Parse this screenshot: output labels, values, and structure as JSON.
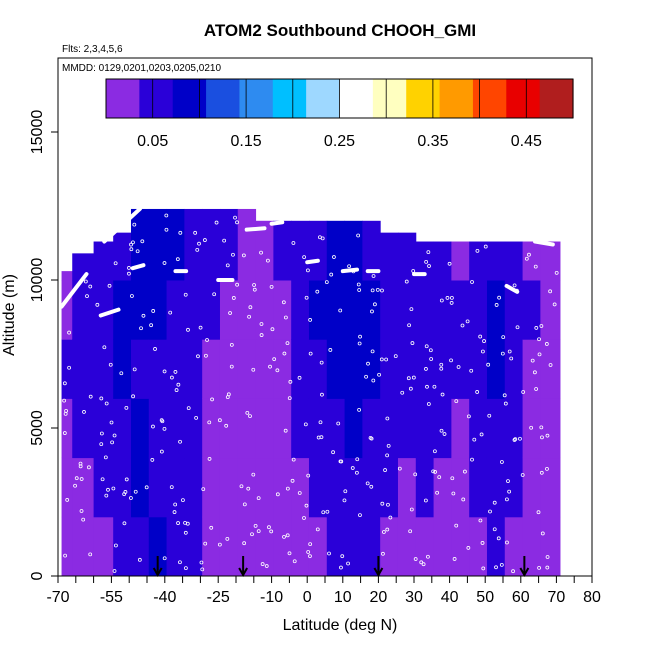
{
  "chart_data": {
    "type": "heatmap",
    "title": "ATOM2 Southbound CHOOH_GMI",
    "flights_label": "Flts: 2,3,4,5,6",
    "dates_label": "MMDD: 0129,0201,0203,0205,0210",
    "xlabel": "Latitude (deg N)",
    "ylabel": "Altitude (m)",
    "xlim": [
      -70,
      80
    ],
    "ylim": [
      0,
      17500
    ],
    "x_ticks": [
      -70,
      -55,
      -40,
      -25,
      -10,
      0,
      10,
      20,
      30,
      40,
      50,
      60,
      70,
      80
    ],
    "x_minor_ticks": [
      -65,
      -60,
      -50,
      -45,
      -35,
      -30,
      -20,
      -15,
      -5,
      5,
      15,
      25,
      35,
      45,
      55,
      65,
      75
    ],
    "y_ticks": [
      0,
      5000,
      10000,
      15000
    ],
    "colorbar": {
      "range": [
        0,
        0.5
      ],
      "ticks": [
        0.05,
        0.15,
        0.25,
        0.35,
        0.45
      ],
      "tick_labels": [
        "0.05",
        "0.15",
        "0.25",
        "0.35",
        "0.45"
      ],
      "colors": [
        "#8B2BE2",
        "#2A00D8",
        "#0000C8",
        "#1A4FE0",
        "#2E8BF0",
        "#00BFFF",
        "#9ED8FF",
        "#FFFFFF",
        "#FFFFC0",
        "#FFD200",
        "#FF9A00",
        "#FF4500",
        "#E80000",
        "#B01E1E"
      ]
    },
    "value_columns": [
      {
        "lat": -69,
        "zmax": 10300,
        "lows": [
          0.02,
          0.02,
          0.02,
          0.04,
          0.03,
          0.02
        ]
      },
      {
        "lat": -63,
        "zmax": 10900,
        "lows": [
          0.03,
          0.03,
          0.04,
          0.05,
          0.05,
          0.04
        ]
      },
      {
        "lat": -57,
        "zmax": 11300,
        "lows": [
          0.03,
          0.04,
          0.06,
          0.07,
          0.06,
          0.05
        ]
      },
      {
        "lat": -52,
        "zmax": 11600,
        "lows": [
          0.04,
          0.06,
          0.07,
          0.08,
          0.08,
          0.06
        ]
      },
      {
        "lat": -47,
        "zmax": 12400,
        "lows": [
          0.07,
          0.08,
          0.09,
          0.07,
          0.08,
          0.09
        ]
      },
      {
        "lat": -42,
        "zmax": 12400,
        "lows": [
          0.08,
          0.07,
          0.05,
          0.06,
          0.08,
          0.09
        ]
      },
      {
        "lat": -37,
        "zmax": 12400,
        "lows": [
          0.06,
          0.05,
          0.05,
          0.06,
          0.07,
          0.08
        ]
      },
      {
        "lat": -32,
        "zmax": 12400,
        "lows": [
          0.04,
          0.04,
          0.04,
          0.05,
          0.06,
          0.07
        ]
      },
      {
        "lat": -27,
        "zmax": 12400,
        "lows": [
          0.03,
          0.03,
          0.03,
          0.03,
          0.04,
          0.05
        ]
      },
      {
        "lat": -22,
        "zmax": 12400,
        "lows": [
          0.02,
          0.02,
          0.02,
          0.02,
          0.03,
          0.04
        ]
      },
      {
        "lat": -17,
        "zmax": 12400,
        "lows": [
          0.02,
          0.02,
          0.02,
          0.02,
          0.03,
          0.03
        ]
      },
      {
        "lat": -12,
        "zmax": 12000,
        "lows": [
          0.02,
          0.02,
          0.02,
          0.02,
          0.02,
          0.03
        ]
      },
      {
        "lat": -7,
        "zmax": 12000,
        "lows": [
          0.02,
          0.02,
          0.03,
          0.03,
          0.03,
          0.04
        ]
      },
      {
        "lat": -2,
        "zmax": 12000,
        "lows": [
          0.02,
          0.03,
          0.04,
          0.04,
          0.05,
          0.06
        ]
      },
      {
        "lat": 3,
        "zmax": 12000,
        "lows": [
          0.03,
          0.04,
          0.06,
          0.07,
          0.08,
          0.07
        ]
      },
      {
        "lat": 8,
        "zmax": 12000,
        "lows": [
          0.04,
          0.05,
          0.07,
          0.08,
          0.09,
          0.08
        ]
      },
      {
        "lat": 13,
        "zmax": 12000,
        "lows": [
          0.05,
          0.06,
          0.08,
          0.09,
          0.09,
          0.08
        ]
      },
      {
        "lat": 18,
        "zmax": 12000,
        "lows": [
          0.04,
          0.05,
          0.07,
          0.08,
          0.08,
          0.07
        ]
      },
      {
        "lat": 23,
        "zmax": 11600,
        "lows": [
          0.03,
          0.04,
          0.05,
          0.06,
          0.07,
          0.06
        ]
      },
      {
        "lat": 28,
        "zmax": 11600,
        "lows": [
          0.03,
          0.03,
          0.05,
          0.06,
          0.06,
          0.05
        ]
      },
      {
        "lat": 33,
        "zmax": 11300,
        "lows": [
          0.03,
          0.04,
          0.04,
          0.05,
          0.05,
          0.05
        ]
      },
      {
        "lat": 38,
        "zmax": 11300,
        "lows": [
          0.02,
          0.03,
          0.04,
          0.04,
          0.05,
          0.04
        ]
      },
      {
        "lat": 43,
        "zmax": 11300,
        "lows": [
          0.02,
          0.03,
          0.03,
          0.04,
          0.04,
          0.03
        ]
      },
      {
        "lat": 48,
        "zmax": 11300,
        "lows": [
          0.03,
          0.04,
          0.04,
          0.05,
          0.05,
          0.04
        ]
      },
      {
        "lat": 53,
        "zmax": 11300,
        "lows": [
          0.04,
          0.05,
          0.07,
          0.08,
          0.08,
          0.05
        ]
      },
      {
        "lat": 58,
        "zmax": 11300,
        "lows": [
          0.03,
          0.04,
          0.05,
          0.06,
          0.06,
          0.04
        ]
      },
      {
        "lat": 63,
        "zmax": 11300,
        "lows": [
          0.02,
          0.02,
          0.03,
          0.03,
          0.04,
          0.03
        ]
      },
      {
        "lat": 68,
        "zmax": 11300,
        "lows": [
          0.02,
          0.02,
          0.02,
          0.02,
          0.02,
          0.02
        ]
      }
    ],
    "flight_tracks": [
      {
        "lat": [
          -69,
          -62
        ],
        "alt": [
          9100,
          10200
        ]
      },
      {
        "lat": [
          -58,
          -53
        ],
        "alt": [
          8800,
          9000
        ]
      },
      {
        "lat": [
          -57,
          -47
        ],
        "alt": [
          11300,
          12400
        ]
      },
      {
        "lat": [
          -49,
          -46
        ],
        "alt": [
          10400,
          10500
        ]
      },
      {
        "lat": [
          -37,
          -34
        ],
        "alt": [
          10300,
          10300
        ]
      },
      {
        "lat": [
          -25,
          -21
        ],
        "alt": [
          10000,
          10000
        ]
      },
      {
        "lat": [
          -17,
          -12
        ],
        "alt": [
          11700,
          11750
        ]
      },
      {
        "lat": [
          -10,
          -7
        ],
        "alt": [
          11900,
          11950
        ]
      },
      {
        "lat": [
          0,
          3
        ],
        "alt": [
          10600,
          10650
        ]
      },
      {
        "lat": [
          10,
          14
        ],
        "alt": [
          10300,
          10350
        ]
      },
      {
        "lat": [
          17,
          20
        ],
        "alt": [
          10300,
          10300
        ]
      },
      {
        "lat": [
          30,
          33
        ],
        "alt": [
          10200,
          10200
        ]
      },
      {
        "lat": [
          56,
          59
        ],
        "alt": [
          9800,
          9600
        ]
      },
      {
        "lat": [
          64,
          69
        ],
        "alt": [
          11300,
          11200
        ]
      }
    ],
    "markers_lat": [
      -42,
      -18,
      20,
      61
    ]
  }
}
